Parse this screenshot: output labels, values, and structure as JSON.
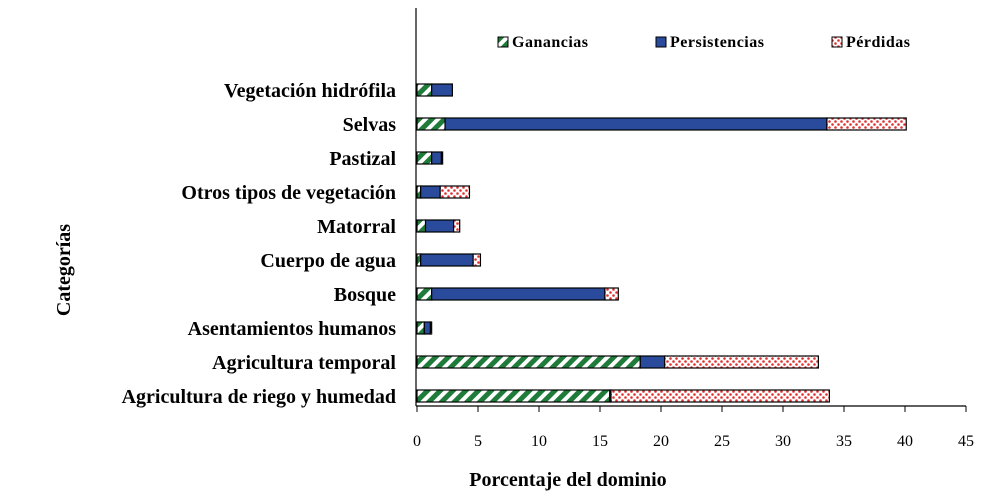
{
  "chart_data": {
    "type": "bar",
    "orientation": "horizontal",
    "stacked": true,
    "title": "",
    "xlabel": "Porcentaje del dominio",
    "ylabel": "Categorías",
    "xlim": [
      0,
      45
    ],
    "xticks": [
      0,
      5,
      10,
      15,
      20,
      25,
      30,
      35,
      40,
      45
    ],
    "grid": false,
    "legend_position": "top-right",
    "categories": [
      "Vegetación hidrófila",
      "Selvas",
      "Pastizal",
      "Otros tipos de vegetación",
      "Matorral",
      "Cuerpo de agua",
      "Bosque",
      "Asentamientos humanos",
      "Agricultura temporal",
      "Agricultura de riego y humedad"
    ],
    "series": [
      {
        "name": "Ganancias",
        "color": "#1e7b3a",
        "pattern": "diagonal-stripes",
        "values": [
          1.2,
          2.3,
          1.2,
          0.3,
          0.7,
          0.3,
          1.2,
          0.6,
          18.3,
          15.8
        ]
      },
      {
        "name": "Persistencias",
        "color": "#2a4a9c",
        "pattern": "solid",
        "values": [
          1.7,
          31.3,
          0.8,
          1.6,
          2.3,
          4.3,
          14.2,
          0.5,
          2.0,
          0.1
        ]
      },
      {
        "name": "Pérdidas",
        "color": "#e03030",
        "pattern": "dots",
        "values": [
          0.0,
          6.5,
          0.1,
          2.4,
          0.5,
          0.6,
          1.1,
          0.1,
          12.6,
          17.9
        ]
      }
    ]
  }
}
